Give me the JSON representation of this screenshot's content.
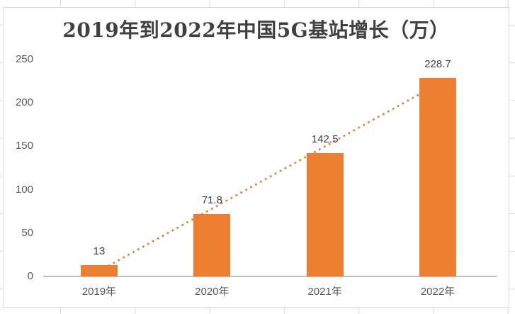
{
  "chart_data": {
    "type": "bar",
    "title": "2019年到2022年中国5G基站增长（万）",
    "categories": [
      "2019年",
      "2020年",
      "2021年",
      "2022年"
    ],
    "values": [
      13,
      71.8,
      142.5,
      228.7
    ],
    "value_labels": [
      "13",
      "71.8",
      "142.5",
      "228.7"
    ],
    "xlabel": "",
    "ylabel": "",
    "ylim": [
      0,
      250
    ],
    "yticks": [
      0,
      50,
      100,
      150,
      200,
      250
    ],
    "grid": false,
    "legend": false,
    "bar_color": "#ED7D31",
    "trendline": {
      "type": "linear",
      "style": "dotted",
      "color": "#ED7D31"
    },
    "title_color": "#404040",
    "data_label_color": "#404040",
    "axis_label_color": "#595959",
    "axis_line_color": "#BFBFBF"
  }
}
